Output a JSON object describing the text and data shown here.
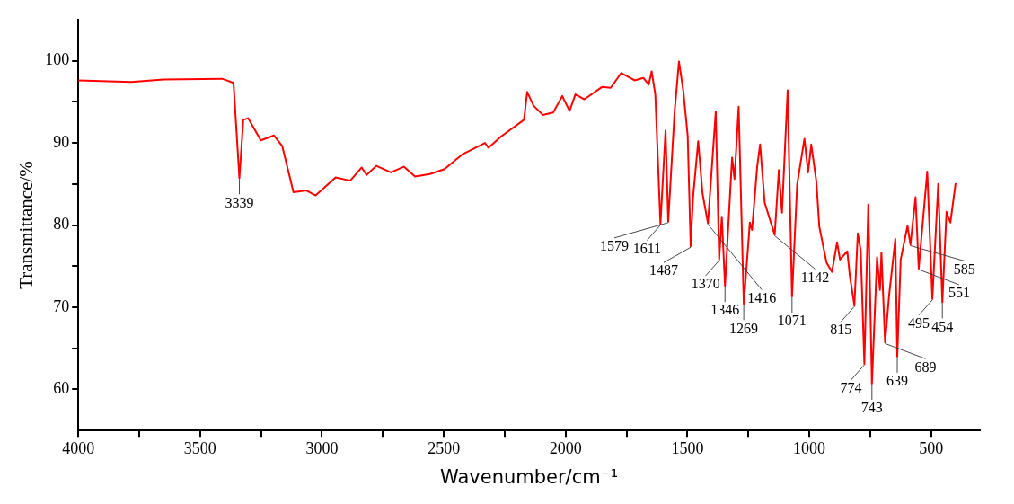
{
  "chart_data": {
    "type": "line",
    "xlabel": "Wavenumber/cm⁻¹",
    "ylabel": "Transmittance/%",
    "xlim": [
      4000,
      300
    ],
    "ylim": [
      55,
      105
    ],
    "xticks": [
      4000,
      {
        "value": 3750,
        "label": null
      },
      3500,
      {
        "value": 3250,
        "label": null
      },
      3000,
      {
        "value": 2750,
        "label": null
      },
      2500,
      {
        "value": 2250,
        "label": null
      },
      2000,
      {
        "value": 1750,
        "label": null
      },
      1500,
      {
        "value": 1250,
        "label": null
      },
      1000,
      {
        "value": 750,
        "label": null
      },
      500
    ],
    "yticks": [
      60,
      {
        "value": 65,
        "label": null
      },
      70,
      {
        "value": 75,
        "label": null
      },
      80,
      {
        "value": 85,
        "label": null
      },
      90,
      {
        "value": 95,
        "label": null
      },
      100
    ],
    "grid": false,
    "legend": false,
    "marker": "none",
    "line_style": "solid",
    "series": [
      {
        "color": "#ff0000",
        "x": [
          4000,
          3783,
          3650,
          3410,
          3363,
          3339,
          3323,
          3303,
          3251,
          3197,
          3163,
          3117,
          3064,
          3026,
          2944,
          2884,
          2837,
          2817,
          2777,
          2717,
          2664,
          2618,
          2557,
          2497,
          2424,
          2331,
          2317,
          2264,
          2171,
          2158,
          2131,
          2094,
          2051,
          2014,
          1984,
          1960,
          1923,
          1851,
          1815,
          1772,
          1717,
          1681,
          1659,
          1647,
          1632,
          1611,
          1590,
          1579,
          1553,
          1535,
          1517,
          1499,
          1487,
          1477,
          1456,
          1438,
          1416,
          1384,
          1370,
          1359,
          1346,
          1317,
          1307,
          1290,
          1269,
          1244,
          1235,
          1214,
          1202,
          1183,
          1142,
          1125,
          1112,
          1089,
          1071,
          1050,
          1020,
          1005,
          992,
          971,
          959,
          929,
          907,
          886,
          874,
          844,
          834,
          815,
          801,
          789,
          774,
          758,
          743,
          722,
          710,
          704,
          689,
          673,
          647,
          639,
          625,
          597,
          585,
          564,
          551,
          516,
          495,
          471,
          454,
          437,
          421,
          400
        ],
        "values": [
          97.6,
          97.4,
          97.7,
          97.8,
          97.3,
          85.7,
          92.8,
          93.0,
          90.3,
          90.9,
          89.6,
          84.0,
          84.2,
          83.6,
          85.8,
          85.4,
          87.0,
          86.1,
          87.2,
          86.4,
          87.1,
          85.9,
          86.2,
          86.8,
          88.6,
          90.0,
          89.4,
          90.8,
          92.8,
          96.2,
          94.5,
          93.4,
          93.7,
          95.7,
          93.9,
          95.9,
          95.3,
          96.8,
          96.7,
          98.5,
          97.6,
          97.9,
          97.1,
          98.7,
          95.9,
          80.1,
          91.5,
          80.4,
          93.7,
          99.9,
          96.3,
          90.8,
          77.4,
          83.4,
          90.2,
          83.8,
          80.2,
          93.8,
          75.8,
          81.0,
          72.6,
          88.2,
          85.6,
          94.4,
          70.4,
          80.3,
          79.4,
          87.1,
          89.8,
          82.7,
          78.8,
          86.7,
          81.5,
          96.4,
          71.3,
          84.9,
          90.5,
          86.4,
          89.8,
          85.3,
          79.8,
          75.4,
          74.3,
          77.9,
          75.8,
          76.8,
          73.9,
          70.2,
          79.0,
          76.9,
          63.1,
          82.5,
          60.7,
          76.1,
          72.1,
          76.6,
          65.7,
          71.3,
          78.3,
          64.0,
          75.8,
          79.9,
          77.6,
          83.4,
          74.7,
          86.5,
          71.0,
          85.0,
          70.6,
          81.6,
          80.3,
          85.0
        ]
      }
    ],
    "annotations": [
      {
        "text": "3339",
        "x": 3339,
        "y": 85.7
      },
      {
        "text": "1611",
        "x": 1611,
        "y": 80.1
      },
      {
        "text": "1579",
        "x": 1579,
        "y": 80.4
      },
      {
        "text": "1487",
        "x": 1487,
        "y": 77.4
      },
      {
        "text": "1416",
        "x": 1416,
        "y": 80.2
      },
      {
        "text": "1370",
        "x": 1370,
        "y": 75.8
      },
      {
        "text": "1346",
        "x": 1346,
        "y": 72.6
      },
      {
        "text": "1269",
        "x": 1269,
        "y": 70.4
      },
      {
        "text": "1142",
        "x": 1142,
        "y": 78.8
      },
      {
        "text": "1071",
        "x": 1071,
        "y": 71.3
      },
      {
        "text": "815",
        "x": 815,
        "y": 70.2
      },
      {
        "text": "774",
        "x": 774,
        "y": 63.1
      },
      {
        "text": "743",
        "x": 743,
        "y": 60.7
      },
      {
        "text": "689",
        "x": 689,
        "y": 65.7
      },
      {
        "text": "639",
        "x": 639,
        "y": 64.0
      },
      {
        "text": "585",
        "x": 585,
        "y": 77.6
      },
      {
        "text": "551",
        "x": 551,
        "y": 74.7
      },
      {
        "text": "495",
        "x": 495,
        "y": 71.0
      },
      {
        "text": "454",
        "x": 454,
        "y": 70.6
      }
    ]
  }
}
